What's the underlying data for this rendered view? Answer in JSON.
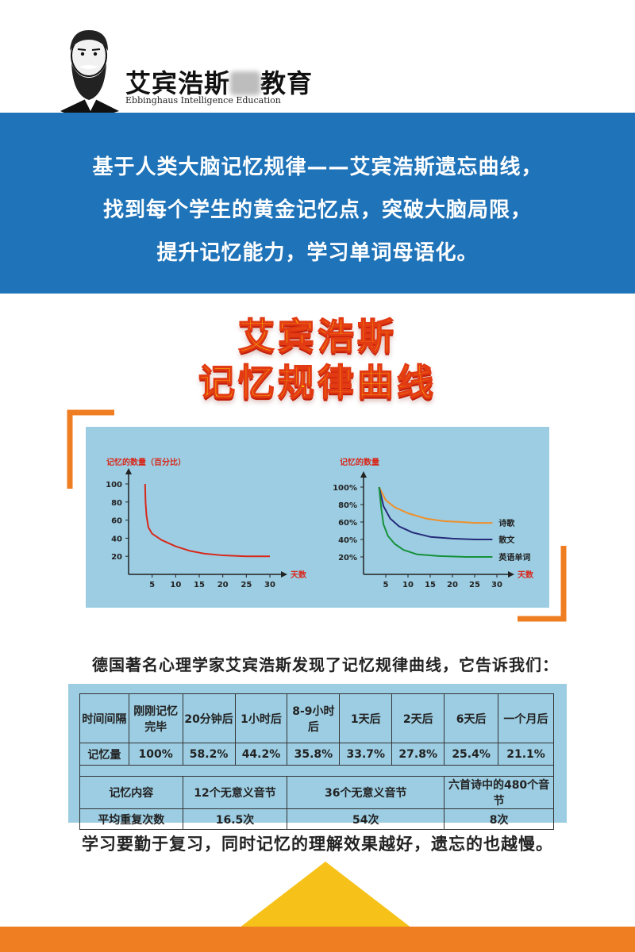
{
  "logo": {
    "title_before": "艾宾浩斯",
    "title_after": "教育",
    "subtitle": "Ebbinghaus Intelligence Education",
    "portrait": "bearded-man-portrait"
  },
  "banner": {
    "lines": [
      "基于人类大脑记忆规律——艾宾浩斯遗忘曲线，",
      "找到每个学生的黄金记忆点，突破大脑局限，",
      "提升记忆能力，学习单词母语化。"
    ]
  },
  "headline": {
    "line1": "艾宾浩斯",
    "line2": "记忆规律曲线"
  },
  "chart_data": [
    {
      "type": "line",
      "ylabel": "记忆的数量（百分比）",
      "xlabel": "天数",
      "x_ticks": [
        "5",
        "10",
        "15",
        "20",
        "25",
        "30"
      ],
      "y_ticks": [
        "20",
        "40",
        "60",
        "80",
        "100"
      ],
      "ylim": [
        0,
        100
      ],
      "xlim": [
        0,
        30
      ],
      "series": [
        {
          "color": "#d8281b",
          "points": [
            [
              3.5,
              100
            ],
            [
              3.6,
              80
            ],
            [
              3.8,
              65
            ],
            [
              4.2,
              52
            ],
            [
              5,
              45
            ],
            [
              7,
              38
            ],
            [
              10,
              31
            ],
            [
              13,
              26
            ],
            [
              16,
              23
            ],
            [
              20,
              21
            ],
            [
              25,
              20
            ],
            [
              30,
              20
            ]
          ]
        }
      ]
    },
    {
      "type": "line",
      "ylabel": "记忆的数量",
      "xlabel": "天数",
      "x_ticks": [
        "5",
        "10",
        "15",
        "20",
        "25",
        "30"
      ],
      "y_ticks": [
        "20%",
        "40%",
        "60%",
        "80%",
        "100%"
      ],
      "ylim": [
        0,
        100
      ],
      "xlim": [
        0,
        30
      ],
      "series": [
        {
          "name": "诗歌",
          "color": "#ef8f2a",
          "points": [
            [
              3.5,
              100
            ],
            [
              5,
              85
            ],
            [
              7,
              77
            ],
            [
              10,
              70
            ],
            [
              14,
              64
            ],
            [
              18,
              61
            ],
            [
              22,
              60
            ],
            [
              25,
              59
            ],
            [
              29,
              59
            ]
          ]
        },
        {
          "name": "散文",
          "color": "#262b7a",
          "points": [
            [
              3.5,
              100
            ],
            [
              4.5,
              78
            ],
            [
              6,
              64
            ],
            [
              8,
              55
            ],
            [
              11,
              48
            ],
            [
              15,
              43
            ],
            [
              20,
              41
            ],
            [
              25,
              40
            ],
            [
              29,
              40
            ]
          ]
        },
        {
          "name": "英语单词",
          "color": "#16913a",
          "points": [
            [
              3.5,
              100
            ],
            [
              4,
              75
            ],
            [
              4.5,
              57
            ],
            [
              5.5,
              44
            ],
            [
              7,
              35
            ],
            [
              9,
              28
            ],
            [
              12,
              23
            ],
            [
              17,
              21
            ],
            [
              23,
              20
            ],
            [
              29,
              20
            ]
          ]
        }
      ]
    }
  ],
  "intro": "德国著名心理学家艾宾浩斯发现了记忆规律曲线，它告诉我们：",
  "table": {
    "row1_header": "时间间隔",
    "intervals": [
      "刚刚记忆完毕",
      "20分钟后",
      "1小时后",
      "8-9小时后",
      "1天后",
      "2天后",
      "6天后",
      "一个月后"
    ],
    "row2_header": "记忆量",
    "amounts": [
      "100%",
      "58.2%",
      "44.2%",
      "35.8%",
      "33.7%",
      "27.8%",
      "25.4%",
      "21.1%"
    ],
    "content_header": "记忆内容",
    "contents": [
      "12个无意义音节",
      "36个无意义音节",
      "六首诗中的480个音节"
    ],
    "repeat_header": "平均重复次数",
    "repeats": [
      "16.5次",
      "54次",
      "8次"
    ]
  },
  "bottom_text": "学习要勤于复习，同时记忆的理解效果越好，遗忘的也越慢。",
  "colors": {
    "banner_blue": "#1f73b8",
    "panel_blue": "#9ccde2",
    "accent_orange": "#ef7d22",
    "headline_yellow": "#ffcc00",
    "headline_red": "#e23a12",
    "triangle_yellow": "#f6c21a"
  }
}
